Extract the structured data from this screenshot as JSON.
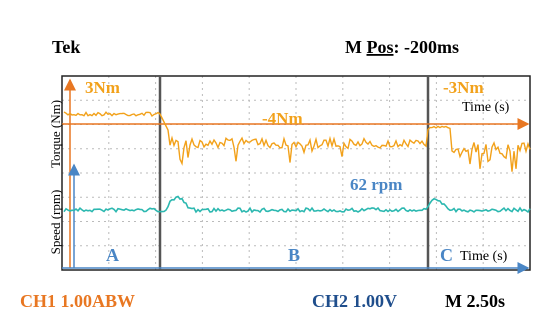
{
  "header": {
    "brand": "Tek",
    "position_label": "M",
    "position_word": "Pos",
    "position_value": ": -200ms"
  },
  "axes": {
    "torque_label": "Torque (Nm)",
    "speed_label": "Speed (rpm)",
    "time_label_top": "Time (s)",
    "time_label_bottom": "Time (s)"
  },
  "annotations": {
    "torque_a": "3Nm",
    "torque_b": "-4Nm",
    "torque_c": "-3Nm",
    "speed": "62 rpm"
  },
  "sections": [
    "A",
    "B",
    "C"
  ],
  "footer": {
    "ch1": "CH1 1.00ABW",
    "ch2": "CH2 1.00V",
    "timebase": "M 2.50s"
  }
}
